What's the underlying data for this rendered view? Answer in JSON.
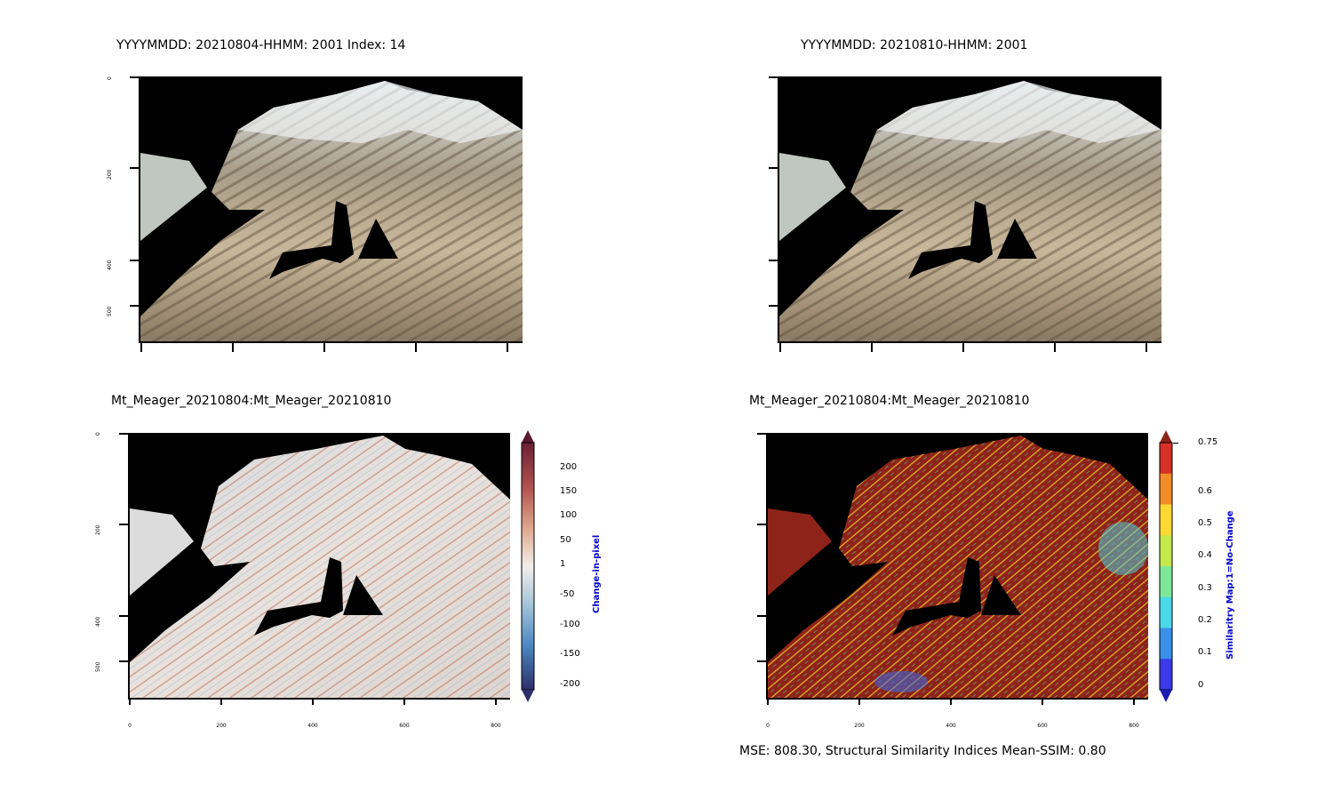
{
  "panels": {
    "top_left": {
      "title": "YYYYMMDD: 20210804-HHMM: 2001 Index: 14"
    },
    "top_right": {
      "title": "YYYYMMDD: 20210810-HHMM: 2001"
    },
    "bottom_left": {
      "title": "Mt_Meager_20210804:Mt_Meager_20210810"
    },
    "bottom_right": {
      "title": "Mt_Meager_20210804:Mt_Meager_20210810"
    }
  },
  "y_ticks": [
    "0",
    "200",
    "400",
    "500"
  ],
  "x_ticks": [
    "0",
    "200",
    "400",
    "600",
    "800"
  ],
  "change_colorbar": {
    "title": "Change-in-pixel",
    "labels": [
      "200",
      "150",
      "100",
      "50",
      "1",
      "-50",
      "-100",
      "-150",
      "-200"
    ]
  },
  "similarity_colorbar": {
    "title": "Similaritry Map:1=No-Change",
    "labels": [
      "0.75",
      "0.6",
      "0.5",
      "0.4",
      "0.3",
      "0.2",
      "0.1",
      "0"
    ],
    "colors": [
      "#d73027",
      "#f28c28",
      "#fdd835",
      "#c5e84a",
      "#7de89a",
      "#4ad9e8",
      "#3a8fe8",
      "#3a3ae8"
    ]
  },
  "footer": {
    "metrics": "MSE: 808.30, Structural Similarity Indices Mean-SSIM: 0.80"
  }
}
